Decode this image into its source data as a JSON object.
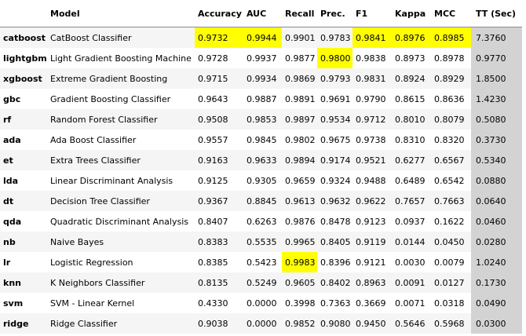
{
  "table": {
    "columns": [
      "",
      "Model",
      "Accuracy",
      "AUC",
      "Recall",
      "Prec.",
      "F1",
      "Kappa",
      "MCC",
      "TT (Sec)"
    ],
    "rows": [
      {
        "id": "catboost",
        "cells": [
          "CatBoost Classifier",
          "0.9732",
          "0.9944",
          "0.9901",
          "0.9783",
          "0.9841",
          "0.8976",
          "0.8985",
          "7.3760"
        ],
        "highlight": [
          1,
          2,
          5,
          6,
          7
        ]
      },
      {
        "id": "lightgbm",
        "cells": [
          "Light Gradient Boosting Machine",
          "0.9728",
          "0.9937",
          "0.9877",
          "0.9800",
          "0.9838",
          "0.8973",
          "0.8978",
          "0.9770"
        ],
        "highlight": [
          4
        ]
      },
      {
        "id": "xgboost",
        "cells": [
          "Extreme Gradient Boosting",
          "0.9715",
          "0.9934",
          "0.9869",
          "0.9793",
          "0.9831",
          "0.8924",
          "0.8929",
          "1.8500"
        ],
        "highlight": []
      },
      {
        "id": "gbc",
        "cells": [
          "Gradient Boosting Classifier",
          "0.9643",
          "0.9887",
          "0.9891",
          "0.9691",
          "0.9790",
          "0.8615",
          "0.8636",
          "1.4230"
        ],
        "highlight": []
      },
      {
        "id": "rf",
        "cells": [
          "Random Forest Classifier",
          "0.9508",
          "0.9853",
          "0.9897",
          "0.9534",
          "0.9712",
          "0.8010",
          "0.8079",
          "0.5080"
        ],
        "highlight": []
      },
      {
        "id": "ada",
        "cells": [
          "Ada Boost Classifier",
          "0.9557",
          "0.9845",
          "0.9802",
          "0.9675",
          "0.9738",
          "0.8310",
          "0.8320",
          "0.3730"
        ],
        "highlight": []
      },
      {
        "id": "et",
        "cells": [
          "Extra Trees Classifier",
          "0.9163",
          "0.9633",
          "0.9894",
          "0.9174",
          "0.9521",
          "0.6277",
          "0.6567",
          "0.5340"
        ],
        "highlight": []
      },
      {
        "id": "lda",
        "cells": [
          "Linear Discriminant Analysis",
          "0.9125",
          "0.9305",
          "0.9659",
          "0.9324",
          "0.9488",
          "0.6489",
          "0.6542",
          "0.0880"
        ],
        "highlight": []
      },
      {
        "id": "dt",
        "cells": [
          "Decision Tree Classifier",
          "0.9367",
          "0.8845",
          "0.9613",
          "0.9632",
          "0.9622",
          "0.7657",
          "0.7663",
          "0.0640"
        ],
        "highlight": []
      },
      {
        "id": "qda",
        "cells": [
          "Quadratic Discriminant Analysis",
          "0.8407",
          "0.6263",
          "0.9876",
          "0.8478",
          "0.9123",
          "0.0937",
          "0.1622",
          "0.0460"
        ],
        "highlight": []
      },
      {
        "id": "nb",
        "cells": [
          "Naive Bayes",
          "0.8383",
          "0.5535",
          "0.9965",
          "0.8405",
          "0.9119",
          "0.0144",
          "0.0450",
          "0.0280"
        ],
        "highlight": []
      },
      {
        "id": "lr",
        "cells": [
          "Logistic Regression",
          "0.8385",
          "0.5423",
          "0.9983",
          "0.8396",
          "0.9121",
          "0.0030",
          "0.0079",
          "1.0240"
        ],
        "highlight": [
          3
        ]
      },
      {
        "id": "knn",
        "cells": [
          "K Neighbors Classifier",
          "0.8135",
          "0.5249",
          "0.9605",
          "0.8402",
          "0.8963",
          "0.0091",
          "0.0127",
          "0.1730"
        ],
        "highlight": []
      },
      {
        "id": "svm",
        "cells": [
          "SVM - Linear Kernel",
          "0.4330",
          "0.0000",
          "0.3998",
          "0.7363",
          "0.3669",
          "0.0071",
          "0.0318",
          "0.0490"
        ],
        "highlight": []
      },
      {
        "id": "ridge",
        "cells": [
          "Ridge Classifier",
          "0.9038",
          "0.0000",
          "0.9852",
          "0.9080",
          "0.9450",
          "0.5646",
          "0.5968",
          "0.0300"
        ],
        "highlight": []
      }
    ]
  },
  "colors": {
    "highlight": "#ffff00",
    "tt_column": "#d3d3d3",
    "row_stripe": "#f5f5f5"
  }
}
